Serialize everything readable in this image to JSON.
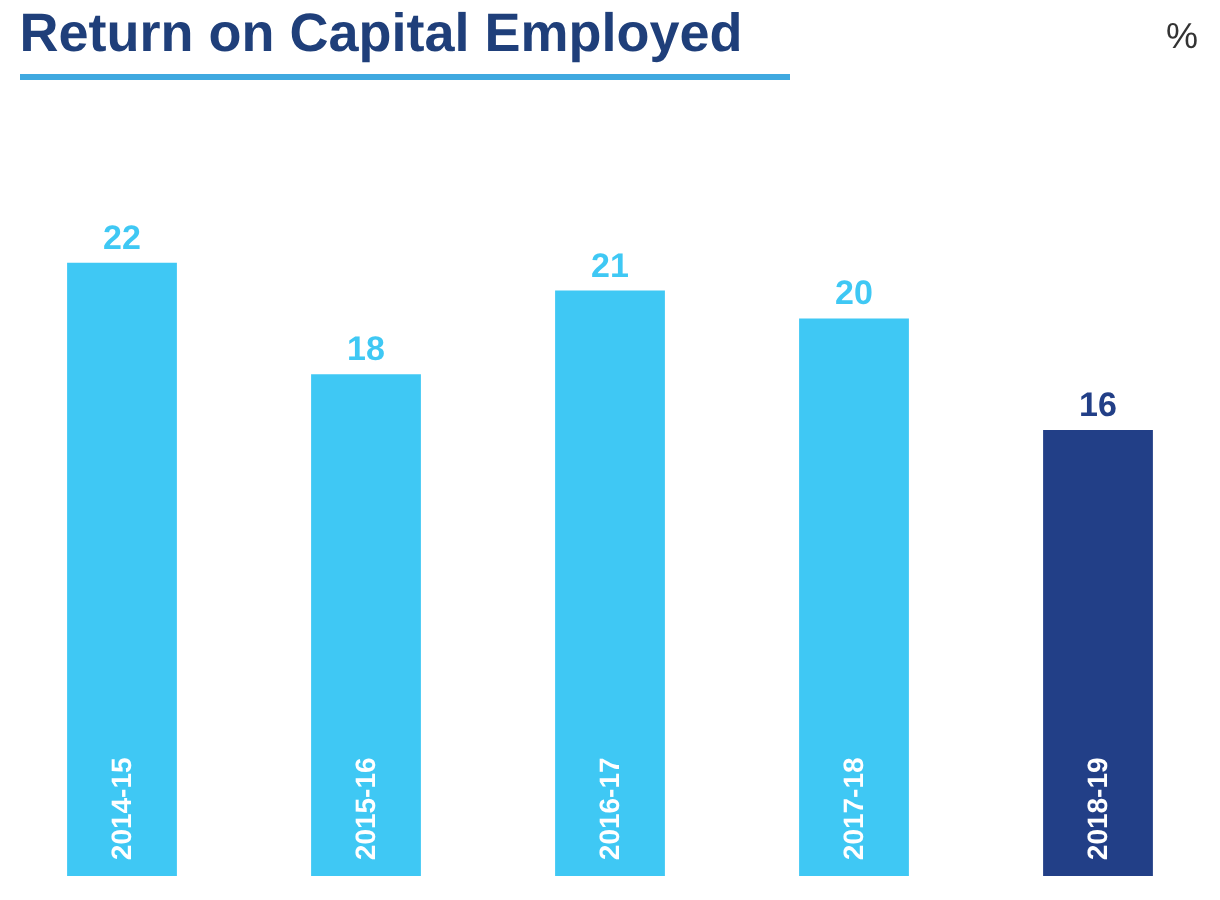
{
  "chart_data": {
    "type": "bar",
    "title": "Return on Capital Employed",
    "annotations": [
      "%"
    ],
    "categories": [
      "2014-15",
      "2015-16",
      "2016-17",
      "2017-18",
      "2018-19"
    ],
    "values": [
      22,
      18,
      21,
      20,
      16
    ],
    "colors": [
      "#3fc8f4",
      "#3fc8f4",
      "#3fc8f4",
      "#3fc8f4",
      "#223f87"
    ],
    "data_labels": true,
    "grid": false
  }
}
